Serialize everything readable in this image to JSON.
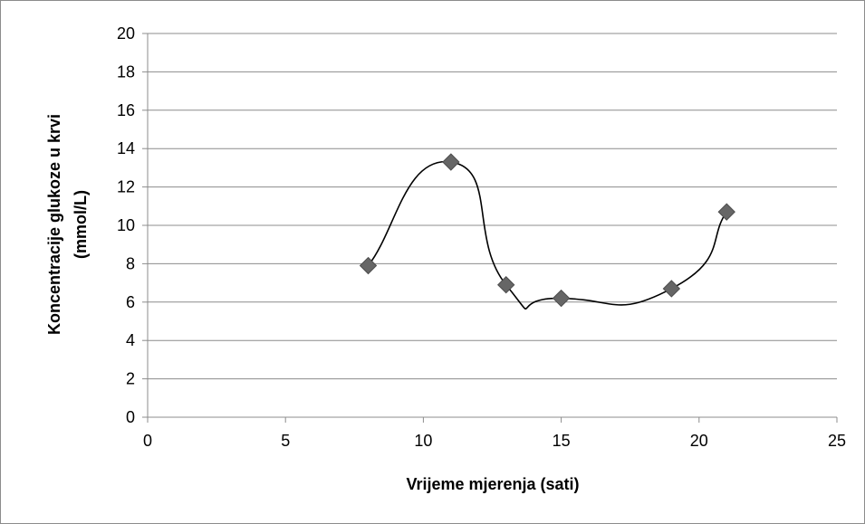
{
  "chart_data": {
    "type": "scatter",
    "title": "",
    "xlabel": "Vrijeme mjerenja (sati)",
    "ylabel_lines": [
      "Koncentracije glukoze u krvi",
      "(mmol/L)"
    ],
    "xlim": [
      0,
      25
    ],
    "ylim": [
      0,
      20
    ],
    "x_ticks": [
      0,
      5,
      10,
      15,
      20,
      25
    ],
    "y_ticks": [
      0,
      2,
      4,
      6,
      8,
      10,
      12,
      14,
      16,
      18,
      20
    ],
    "grid": "horizontal",
    "legend": "none",
    "trendline": "smooth",
    "marker": "diamond",
    "marker_color": "#666666",
    "line_color": "#000000",
    "gridline_color": "#8c8c8c",
    "series": [
      {
        "x": [
          8,
          11,
          13,
          15,
          19,
          21
        ],
        "y": [
          7.9,
          13.3,
          6.9,
          6.2,
          6.7,
          10.7
        ]
      }
    ]
  }
}
